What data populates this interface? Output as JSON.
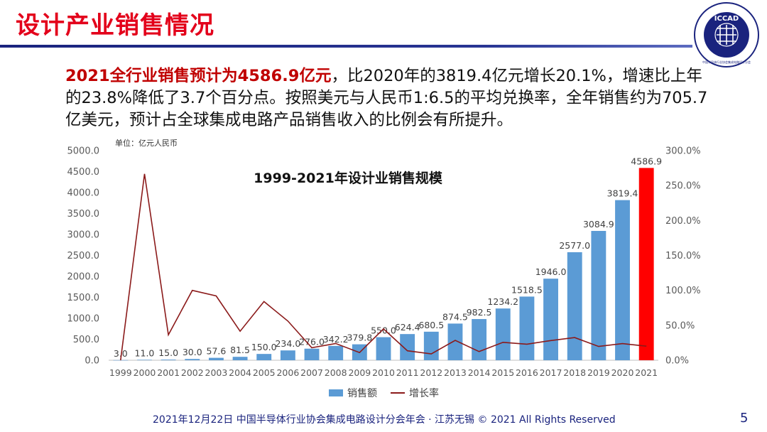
{
  "header": {
    "title": "设计产业销售情况",
    "logo_text": "ICCAD",
    "logo_subtext": "中国半导体行业协会集成电路设计分会"
  },
  "body": {
    "highlight": "2021全行业销售预计为4586.9亿元",
    "rest": "，比2020年的3819.4亿元增长20.1%，增速比上年的23.8%降低了3.7个百分点。按照美元与人民币1:6.5的平均兑换率，全年销售约为705.7亿美元，预计占全球集成电路产品销售收入的比例会有所提升。"
  },
  "chart_data": {
    "type": "bar",
    "title": "1999-2021年设计业销售规模",
    "unit_label": "单位：亿元人民币",
    "categories": [
      "1999",
      "2000",
      "2001",
      "2002",
      "2003",
      "2004",
      "2005",
      "2006",
      "2007",
      "2008",
      "2009",
      "2010",
      "2011",
      "2012",
      "2013",
      "2014",
      "2015",
      "2016",
      "2017",
      "2018",
      "2019",
      "2020",
      "2021"
    ],
    "series": [
      {
        "name": "销售额",
        "type": "bar",
        "axis": "left",
        "color": "#5b9bd5",
        "highlight_last_color": "#ff0000",
        "values": [
          3.0,
          11.0,
          15.0,
          30.0,
          57.6,
          81.5,
          150.0,
          234.0,
          276.0,
          342.2,
          379.8,
          550.0,
          624.4,
          680.5,
          874.5,
          982.5,
          1234.2,
          1518.5,
          1946.0,
          2577.0,
          3084.9,
          3819.4,
          4586.9
        ],
        "labels": [
          "3.0",
          "11.0",
          "15.0",
          "30.0",
          "57.6",
          "81.5",
          "150.0",
          "234.0",
          "276.0",
          "342.2",
          "379.8",
          "550.0",
          "624.4",
          "680.5",
          "874.5",
          "982.5",
          "1234.2",
          "1518.5",
          "1946.0",
          "2577.0",
          "3084.9",
          "3819.4",
          "4586.9"
        ]
      },
      {
        "name": "增长率",
        "type": "line",
        "axis": "right",
        "color": "#8b1a1a",
        "values": [
          0,
          266.7,
          36.4,
          100.0,
          92.0,
          41.5,
          84.0,
          56.0,
          17.9,
          24.0,
          11.0,
          44.8,
          13.5,
          9.0,
          28.5,
          12.4,
          25.6,
          23.0,
          28.2,
          32.4,
          19.7,
          23.8,
          20.1
        ]
      }
    ],
    "ylim": [
      0,
      5000
    ],
    "y_ticks": [
      "0.0",
      "500.0",
      "1000.0",
      "1500.0",
      "2000.0",
      "2500.0",
      "3000.0",
      "3500.0",
      "4000.0",
      "4500.0",
      "5000.0"
    ],
    "y2lim": [
      0,
      300
    ],
    "y2_ticks": [
      "0.0%",
      "50.0%",
      "100.0%",
      "150.0%",
      "200.0%",
      "250.0%",
      "300.0%"
    ],
    "grid": false,
    "legend": "bottom"
  },
  "footer": {
    "text": "2021年12月22日 中国半导体行业协会集成电路设计分会年会 · 江苏无锡 © 2021 All Rights Reserved",
    "page": "5"
  }
}
